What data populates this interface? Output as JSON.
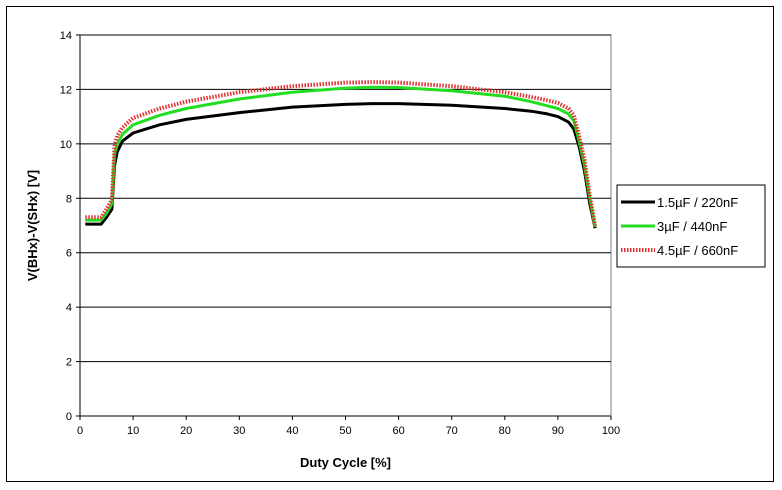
{
  "chart_data": {
    "type": "line",
    "xlabel": "Duty Cycle [%]",
    "ylabel": "V(BHx)-V(SHx) [V]",
    "xlim": [
      0,
      100
    ],
    "ylim": [
      0,
      14
    ],
    "xticks": [
      0,
      10,
      20,
      30,
      40,
      50,
      60,
      70,
      80,
      90,
      100
    ],
    "yticks": [
      0,
      2,
      4,
      6,
      8,
      10,
      12,
      14
    ],
    "grid": "horizontal",
    "legend": "right",
    "series": [
      {
        "name": "1.5µF / 220nF",
        "color": "#000000",
        "style": "solid",
        "x": [
          1,
          3,
          4,
          5,
          6,
          6.5,
          7,
          8,
          10,
          15,
          20,
          30,
          40,
          50,
          55,
          60,
          70,
          80,
          85,
          88,
          90,
          92,
          93,
          94,
          95,
          96,
          97
        ],
        "y": [
          7.05,
          7.05,
          7.05,
          7.3,
          7.6,
          9.2,
          9.7,
          10.1,
          10.4,
          10.7,
          10.9,
          11.15,
          11.35,
          11.45,
          11.48,
          11.48,
          11.42,
          11.3,
          11.2,
          11.1,
          11.0,
          10.8,
          10.55,
          9.9,
          9.0,
          7.8,
          6.9
        ]
      },
      {
        "name": "3µF / 440nF",
        "color": "#22dd22",
        "style": "solid",
        "x": [
          1,
          3,
          4,
          5,
          6,
          6.5,
          7,
          8,
          10,
          15,
          20,
          30,
          40,
          50,
          55,
          60,
          70,
          80,
          85,
          88,
          90,
          92,
          93,
          94,
          95,
          96,
          97
        ],
        "y": [
          7.2,
          7.2,
          7.2,
          7.45,
          7.8,
          9.6,
          10.0,
          10.35,
          10.7,
          11.05,
          11.3,
          11.65,
          11.9,
          12.05,
          12.08,
          12.07,
          11.95,
          11.75,
          11.55,
          11.4,
          11.3,
          11.1,
          10.85,
          10.1,
          9.2,
          8.0,
          6.95
        ]
      },
      {
        "name": "4.5µF / 660nF",
        "color": "#e03030",
        "style": "dotted",
        "x": [
          1,
          3,
          4,
          5,
          6,
          6.5,
          7,
          8,
          10,
          15,
          20,
          30,
          40,
          50,
          55,
          60,
          70,
          80,
          85,
          88,
          90,
          92,
          93,
          94,
          95,
          96,
          97
        ],
        "y": [
          7.3,
          7.3,
          7.3,
          7.6,
          7.95,
          9.9,
          10.3,
          10.6,
          10.95,
          11.3,
          11.55,
          11.9,
          12.12,
          12.25,
          12.27,
          12.25,
          12.12,
          11.9,
          11.72,
          11.6,
          11.5,
          11.3,
          11.05,
          10.3,
          9.4,
          8.1,
          7.0
        ]
      }
    ]
  }
}
